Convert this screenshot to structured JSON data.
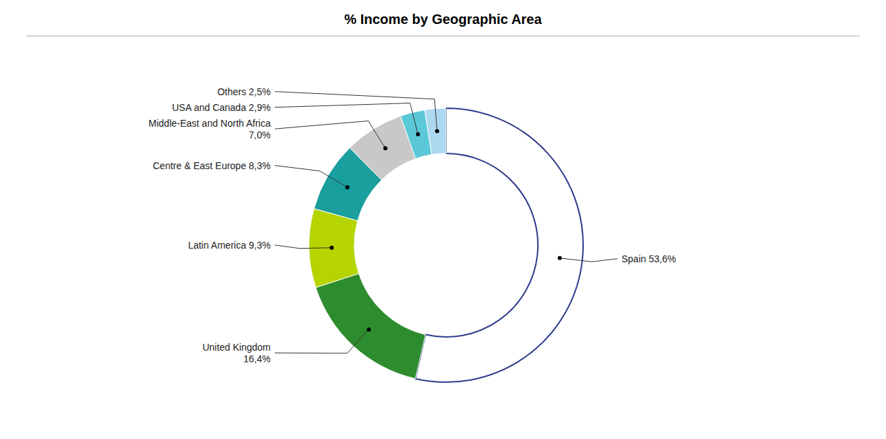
{
  "chart_data": {
    "type": "donut",
    "title": "% Income by Geographic Area",
    "categories": [
      "Spain",
      "United Kingdom",
      "Latin America",
      "Centre & East Europe",
      "Middle-East and North Africa",
      "USA and Canada",
      "Others"
    ],
    "values": [
      53.6,
      16.4,
      9.3,
      8.3,
      7.0,
      2.9,
      2.5
    ],
    "value_labels": [
      "Spain 53,6%",
      "United Kingdom\n16,4%",
      "Latin America 9,3%",
      "Centre & East Europe 8,3%",
      "Middle-East and North Africa\n7,0%",
      "USA and Canada 2,9%",
      "Others 2,5%"
    ],
    "colors": [
      "#ffffff",
      "#2d8c2d",
      "#b5d400",
      "#1a9e9e",
      "#c8c8c8",
      "#5bc8d8",
      "#add8f0"
    ]
  }
}
